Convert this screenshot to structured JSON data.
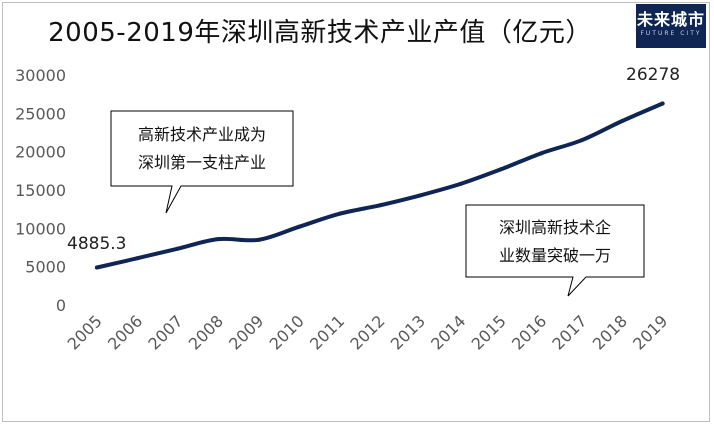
{
  "chart_data": {
    "type": "line",
    "title": "2005-2019年深圳高新技术产业产值（亿元）",
    "xlabel": "",
    "ylabel": "",
    "ylim": [
      0,
      30000
    ],
    "yticks": [
      "30000",
      "25000",
      "20000",
      "15000",
      "10000",
      "5000",
      "0"
    ],
    "categories": [
      "2005",
      "2006",
      "2007",
      "2008",
      "2009",
      "2010",
      "2011",
      "2012",
      "2013",
      "2014",
      "2015",
      "2016",
      "2017",
      "2018",
      "2019"
    ],
    "series": [
      {
        "values": [
          4885.3,
          6100,
          7350,
          8600,
          8500,
          10200,
          11900,
          13000,
          14300,
          15800,
          17700,
          19800,
          21500,
          24000,
          26278
        ]
      }
    ],
    "data_labels": {
      "first": "4885.3",
      "last": "26278"
    },
    "line_color": "#0f2553",
    "grid": false,
    "legend": "none"
  },
  "logo": {
    "main": "未来城市",
    "sub": "FUTURE CITY"
  },
  "callouts": [
    {
      "lines": [
        "高新技术产业成为",
        "深圳第一支柱产业"
      ]
    },
    {
      "lines": [
        "深圳高新技术企",
        "业数量突破一万"
      ]
    }
  ]
}
